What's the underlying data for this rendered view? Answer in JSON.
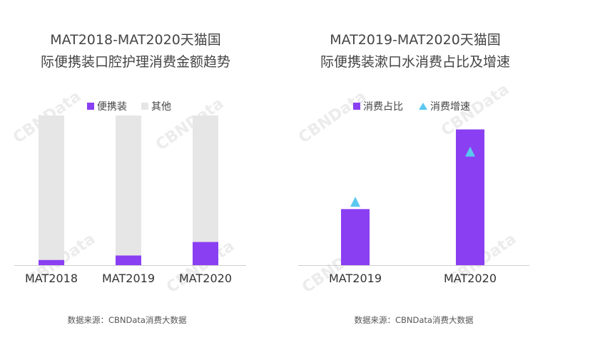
{
  "chart_data": [
    {
      "type": "bar",
      "stacked": true,
      "normalized": true,
      "title": "MAT2018-MAT2020天猫国际便携装口腔护理消费金额趋势",
      "title_lines": [
        "MAT2018-MAT2020天猫国",
        "际便携装口腔护理消费金额趋势"
      ],
      "categories": [
        "MAT2018",
        "MAT2019",
        "MAT2020"
      ],
      "series": [
        {
          "name": "便携装",
          "values": [
            3.5,
            6.5,
            15.5
          ],
          "color": "#8a3ff2"
        },
        {
          "name": "其他",
          "values": [
            96.5,
            93.5,
            84.5
          ],
          "color": "#e6e6e6"
        }
      ],
      "ylim": [
        0,
        100
      ],
      "legend_position": "top",
      "source": "数据来源：CBNData消费大数据"
    },
    {
      "type": "bar",
      "title": "MAT2019-MAT2020天猫国际便携装漱口水消费占比及增速",
      "title_lines": [
        "MAT2019-MAT2020天猫国",
        "际便携装漱口水消费占比及增速"
      ],
      "categories": [
        "MAT2019",
        "MAT2020"
      ],
      "series": [
        {
          "name": "消费占比",
          "kind": "bar",
          "values": [
            38,
            92
          ],
          "color": "#8a3ff2"
        },
        {
          "name": "消费增速",
          "kind": "marker",
          "values": [
            43,
            77
          ],
          "color": "#5bc8f0"
        }
      ],
      "ylim": [
        0,
        100
      ],
      "legend_position": "top",
      "source": "数据来源：CBNData消费大数据"
    }
  ],
  "watermark": "CBNData"
}
